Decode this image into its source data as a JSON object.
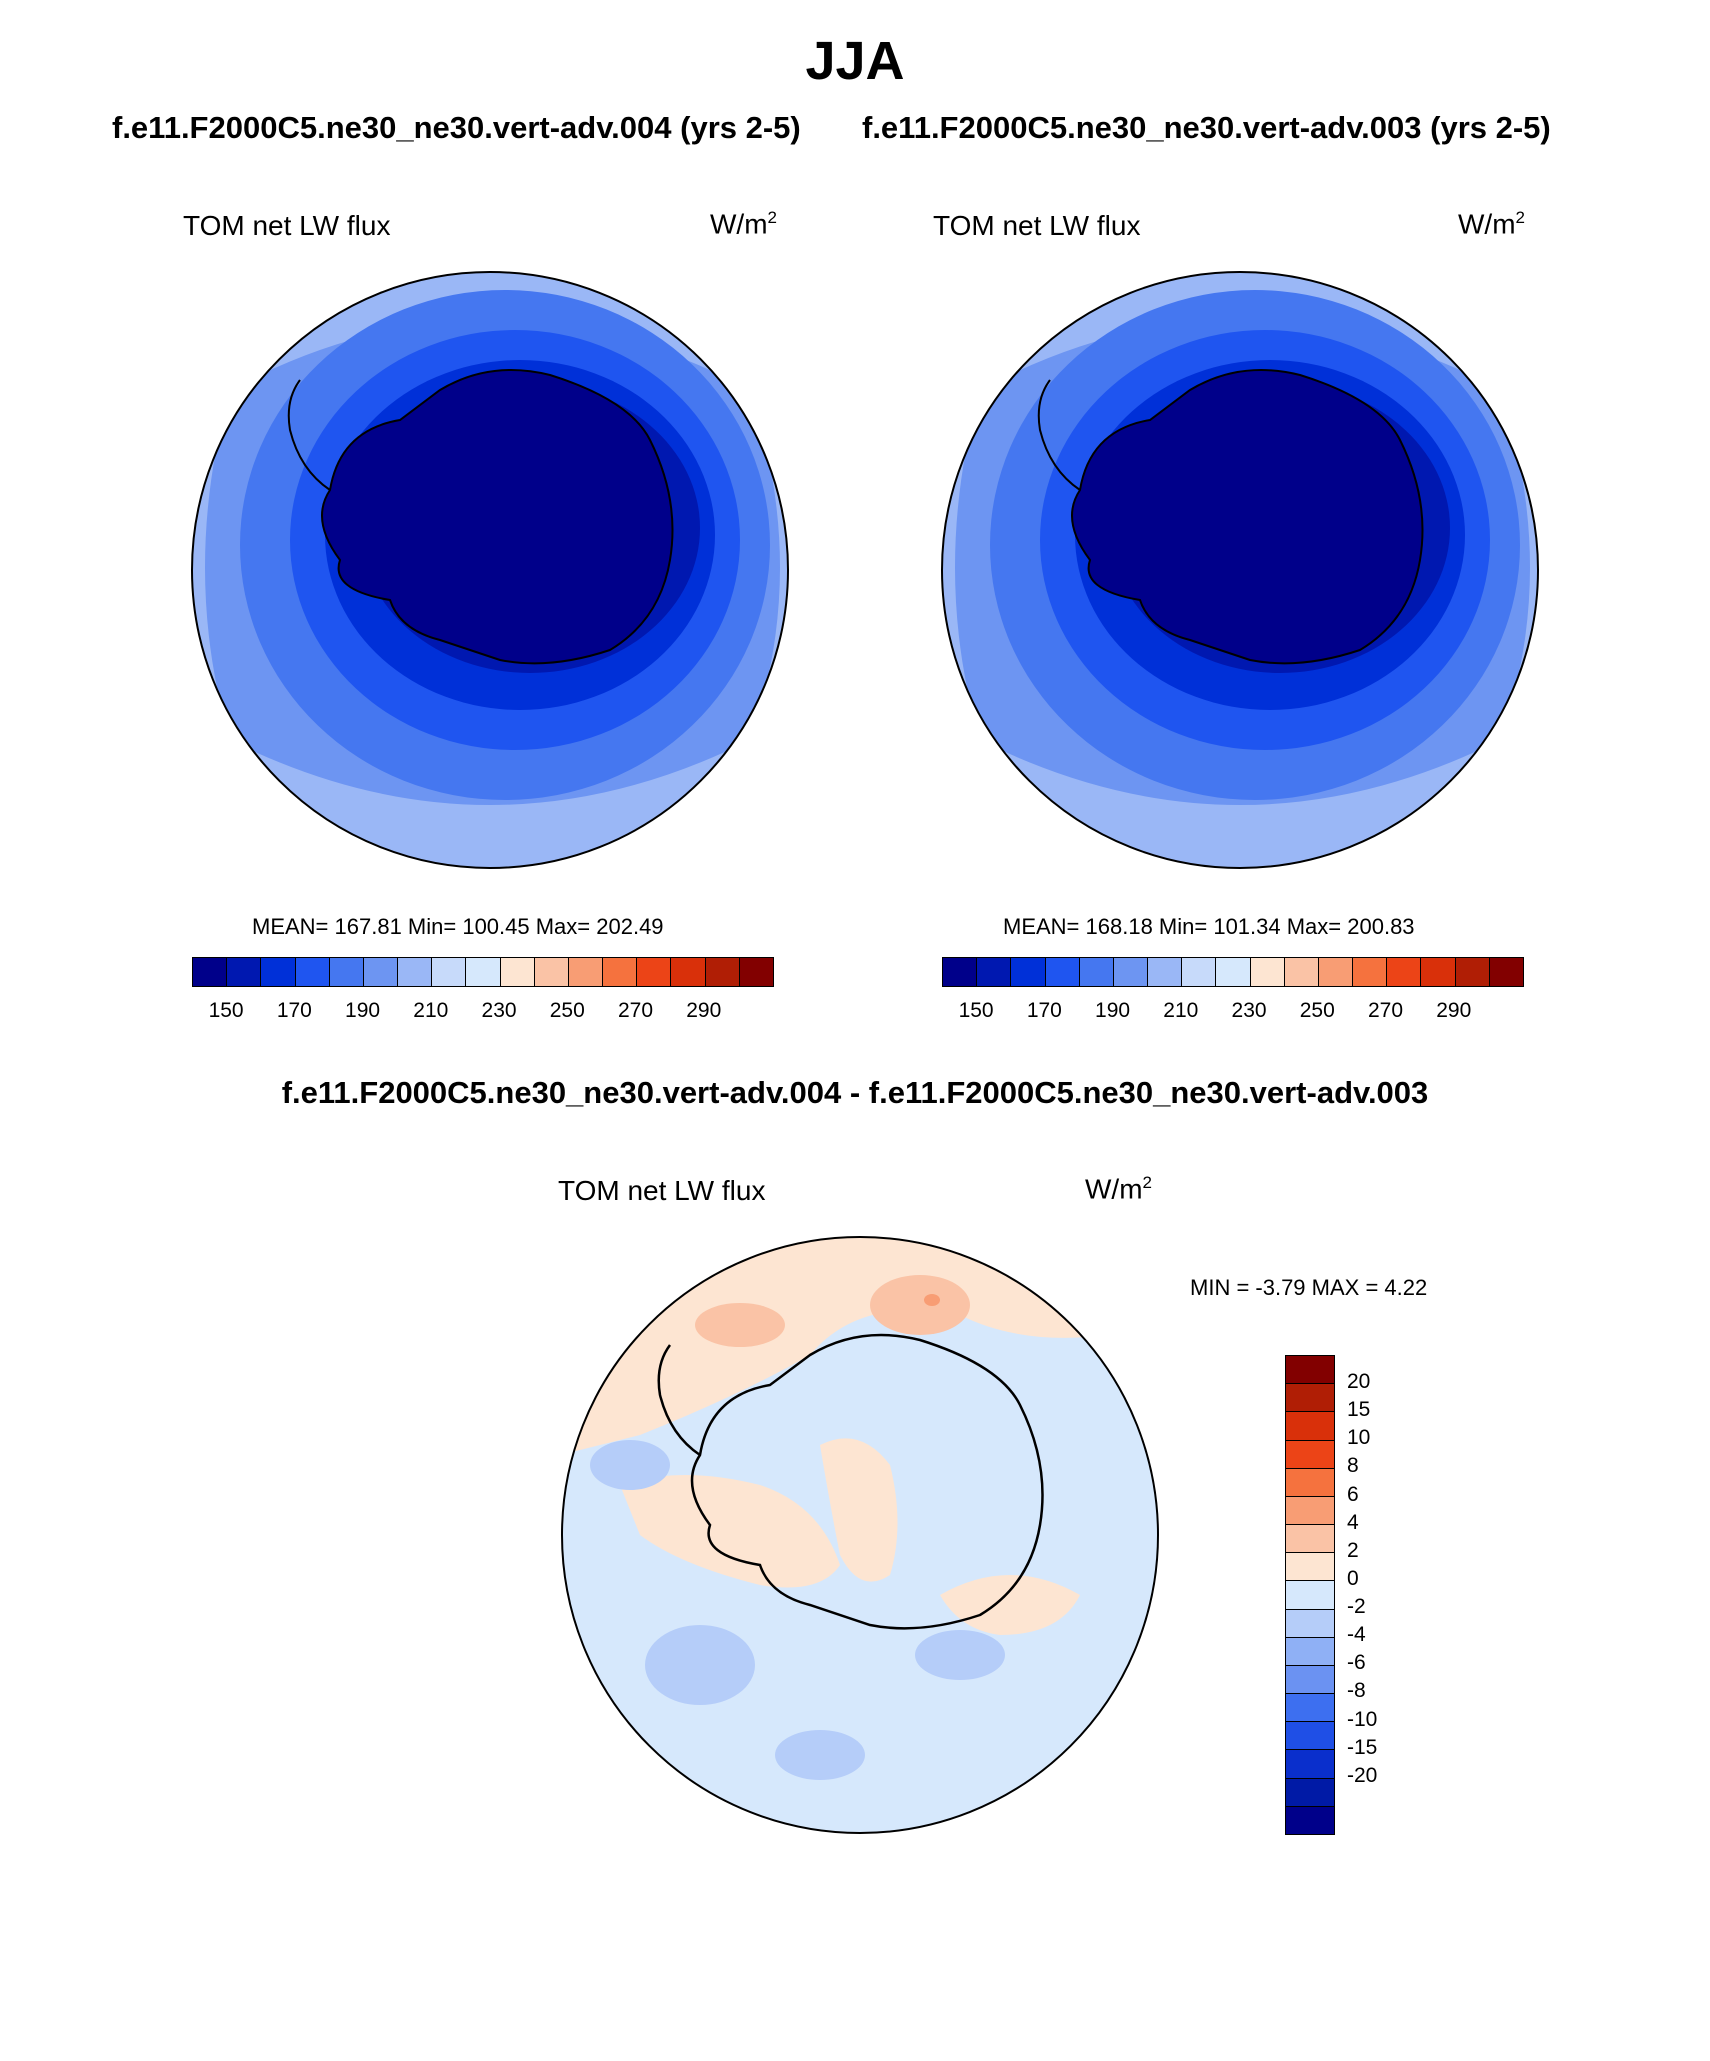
{
  "season": "JJA",
  "runs": {
    "left": "f.e11.F2000C5.ne30_ne30.vert-adv.004 (yrs 2-5)",
    "right": "f.e11.F2000C5.ne30_ne30.vert-adv.003 (yrs 2-5)"
  },
  "panels": [
    {
      "variable": "TOM net LW flux",
      "units_base": "W/m",
      "units_exp": "2",
      "stats": "MEAN= 167.81  Min= 100.45  Max= 202.49"
    },
    {
      "variable": "TOM net LW flux",
      "units_base": "W/m",
      "units_exp": "2",
      "stats": "MEAN= 168.18  Min= 101.34  Max= 200.83"
    }
  ],
  "abs_colorbar": {
    "colors": [
      "#00008a",
      "#0018b0",
      "#0030d8",
      "#1f55f0",
      "#4577f0",
      "#6d95f2",
      "#9ab7f6",
      "#c7dafa",
      "#d6e8fc",
      "#fde5d2",
      "#fac3a6",
      "#f89d74",
      "#f5723e",
      "#ec4417",
      "#d9300a",
      "#b01e05",
      "#820000"
    ],
    "tick_labels": [
      "150",
      "170",
      "190",
      "210",
      "230",
      "250",
      "270",
      "290"
    ]
  },
  "difference": {
    "title": "f.e11.F2000C5.ne30_ne30.vert-adv.004 - f.e11.F2000C5.ne30_ne30.vert-adv.003",
    "variable": "TOM net LW flux",
    "units_base": "W/m",
    "units_exp": "2",
    "stats": "MIN =  -3.79 MAX =   4.22",
    "colorbar": {
      "colors_top_to_bottom": [
        "#820000",
        "#b01e05",
        "#d9300a",
        "#ec4417",
        "#f5723e",
        "#f89d74",
        "#fac3a6",
        "#fde5d2",
        "#d6e8fc",
        "#b5cdf9",
        "#8fb0f5",
        "#6b92f2",
        "#3d6ff0",
        "#1f4fe6",
        "#0a2fcc",
        "#001aa6",
        "#00008a"
      ],
      "tick_labels": [
        "20",
        "15",
        "10",
        "8",
        "6",
        "4",
        "2",
        "0",
        "-2",
        "-4",
        "-6",
        "-8",
        "-10",
        "-15",
        "-20"
      ]
    }
  },
  "map_colors": {
    "ring_light": "#9ab7f6",
    "ring_mid": "#6d95f2",
    "ring_blue": "#4577f0",
    "ring_deep": "#1f55f0",
    "ring_deeper": "#0030d8",
    "ring_dark": "#0018b0",
    "continent": "#00008a",
    "diff_neg": "#d6e8fc",
    "diff_neg2": "#b5cdf9",
    "diff_pos": "#fde5d2",
    "diff_pos2": "#fac3a6",
    "diff_pos3": "#f89d74"
  }
}
